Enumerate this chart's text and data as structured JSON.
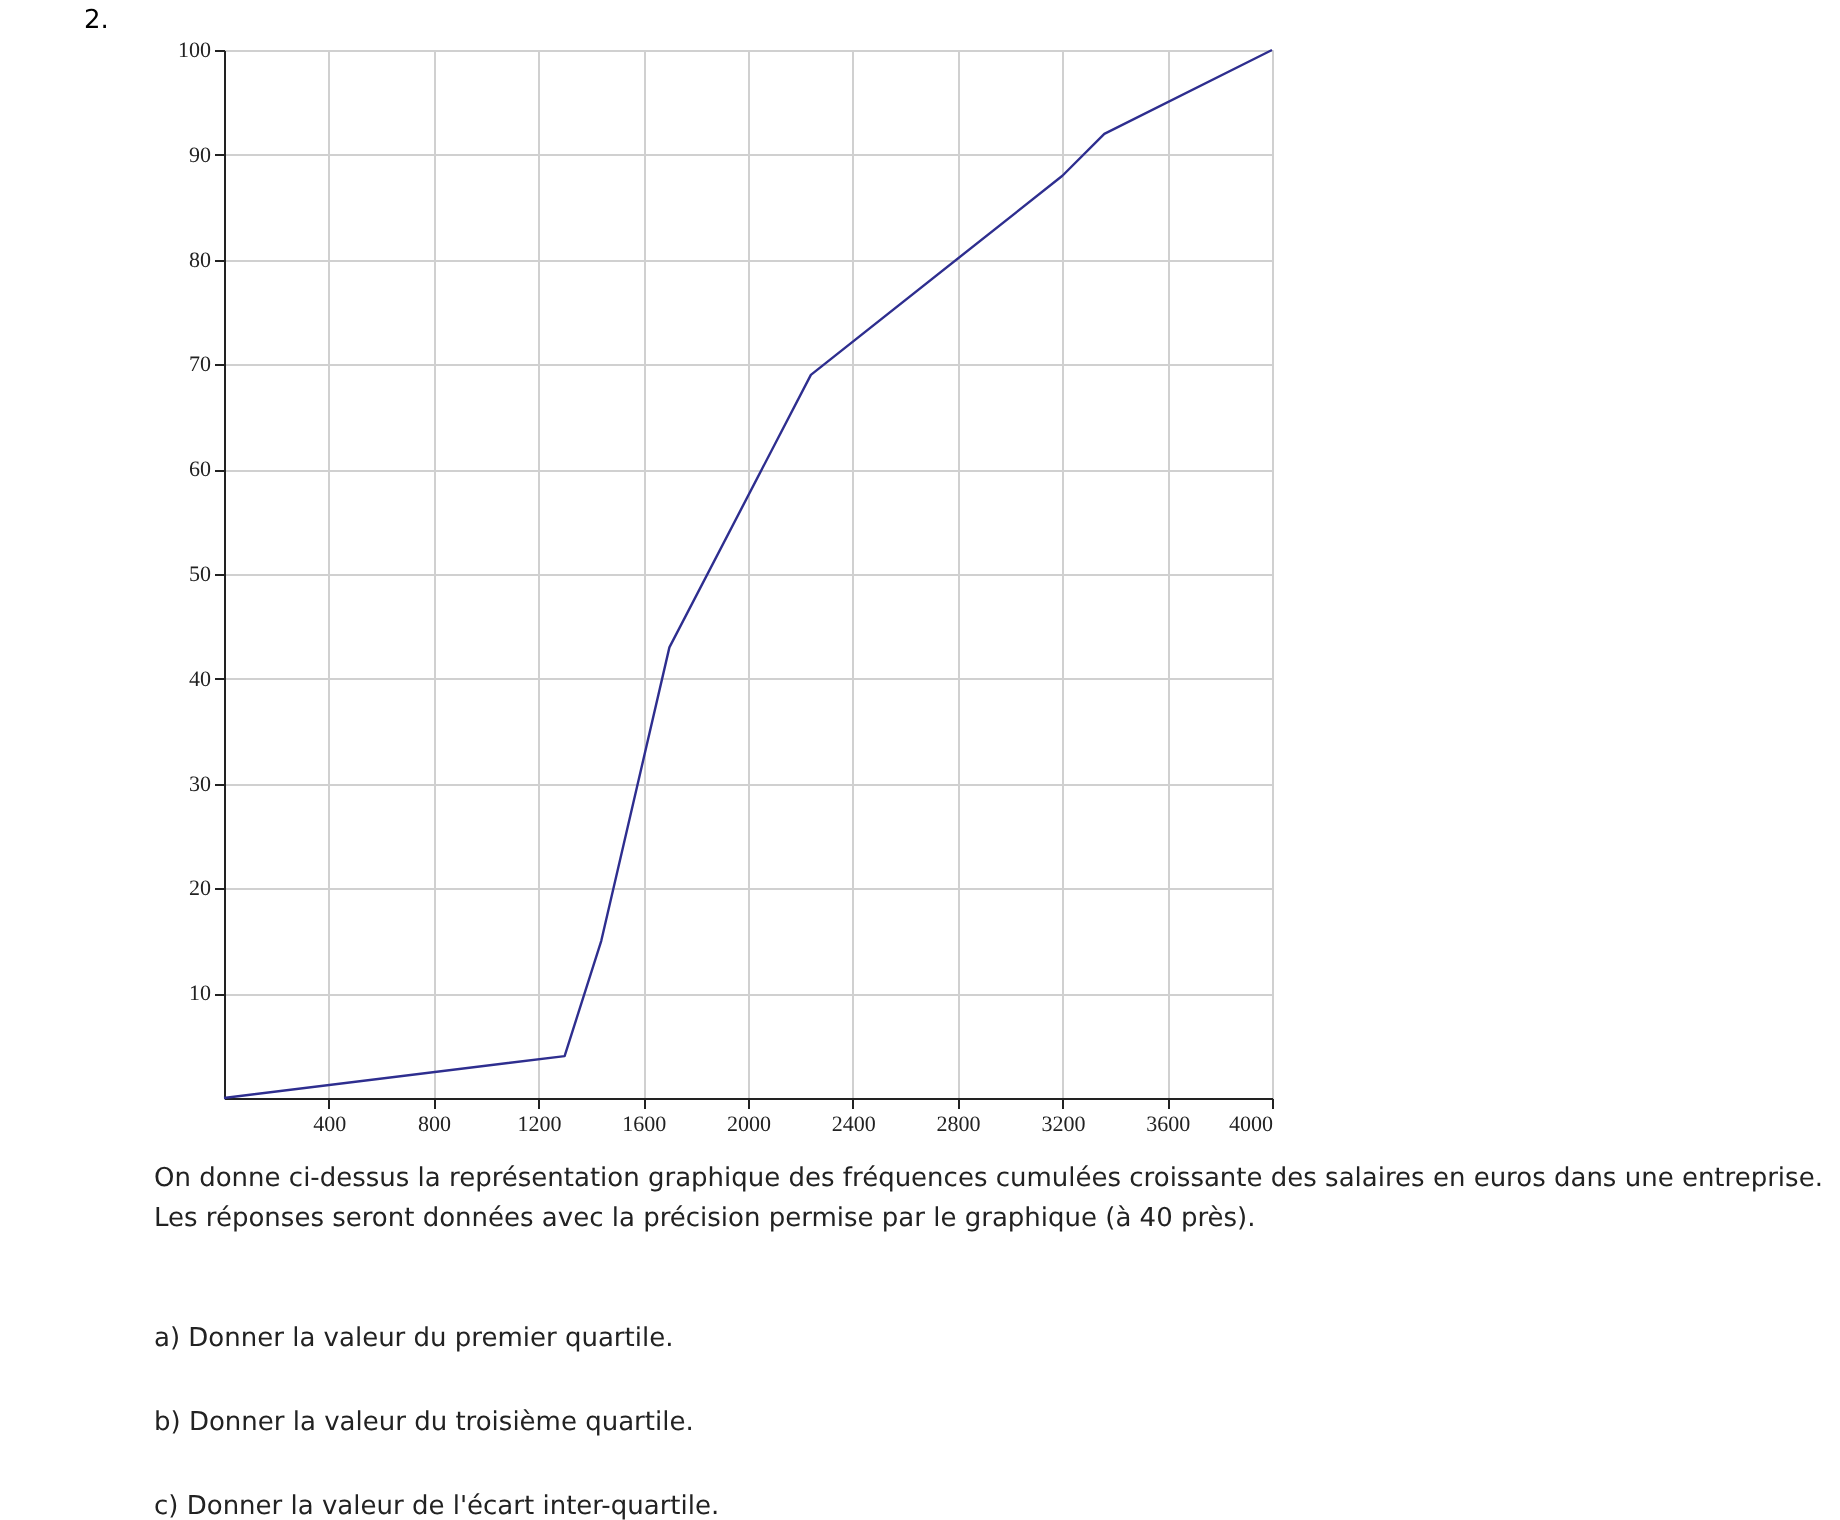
{
  "chart_data": {
    "type": "line",
    "title": "2.",
    "x": [
      0,
      1300,
      1440,
      1700,
      2240,
      3200,
      3360,
      4000
    ],
    "series": [
      {
        "color": "#2e2e8f",
        "values": [
          0,
          4,
          15,
          43,
          69,
          88,
          92,
          100
        ]
      }
    ],
    "xlim": [
      0,
      4000
    ],
    "ylim": [
      0,
      100
    ],
    "xticks": [
      400,
      800,
      1200,
      1600,
      2000,
      2400,
      2800,
      3200,
      3600,
      4000
    ],
    "yticks": [
      10,
      20,
      30,
      40,
      50,
      60,
      70,
      80,
      90,
      100
    ],
    "grid": true,
    "marker": "none",
    "line_style": "solid",
    "annotations": [
      "On donne ci-dessus la représentation graphique des fréquences cumulées croissante des salaires en euros dans une entreprise.",
      "Les réponses seront données avec la précision permise par le graphique (à 40 près).",
      "a) Donner la valeur du premier quartile.",
      "b) Donner la valeur du troisième quartile.",
      "c) Donner la valeur de l'écart inter-quartile."
    ]
  }
}
